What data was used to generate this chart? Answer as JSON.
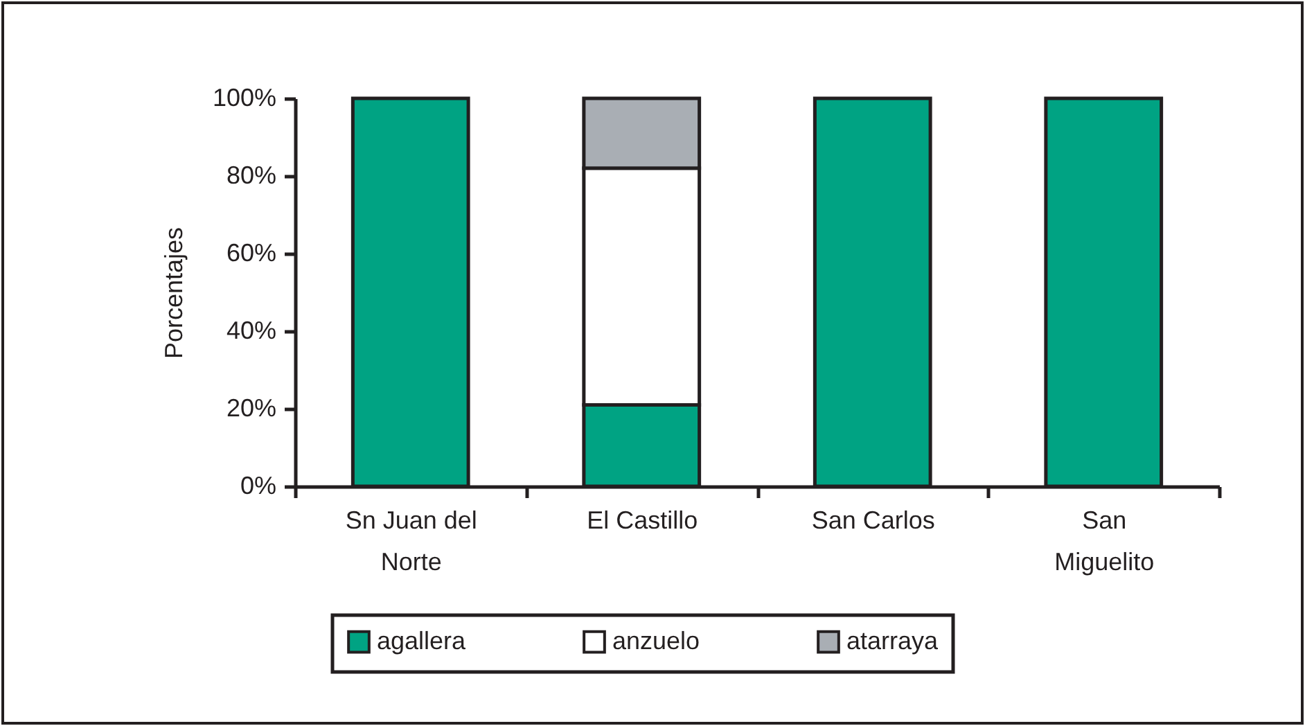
{
  "chart_data": {
    "type": "bar",
    "stacked": true,
    "ylabel": "Porcentajes",
    "categories": [
      "Sn Juan del Norte",
      "El Castillo",
      "San Carlos",
      "San Miguelito"
    ],
    "series": [
      {
        "name": "agallera",
        "color": "#00a383",
        "values": [
          100,
          21,
          100,
          100
        ]
      },
      {
        "name": "anzuelo",
        "color": "#ffffff",
        "values": [
          0,
          61,
          0,
          0
        ]
      },
      {
        "name": "atarraya",
        "color": "#a9aeb4",
        "values": [
          0,
          18,
          0,
          0
        ]
      }
    ],
    "ylim": [
      0,
      100
    ],
    "yticks": [
      {
        "value": 0,
        "label": "0%"
      },
      {
        "value": 20,
        "label": "20%"
      },
      {
        "value": 40,
        "label": "40%"
      },
      {
        "value": 60,
        "label": "60%"
      },
      {
        "value": 80,
        "label": "80%"
      },
      {
        "value": 100,
        "label": "100%"
      }
    ],
    "grid": false,
    "legend": "bottom"
  }
}
